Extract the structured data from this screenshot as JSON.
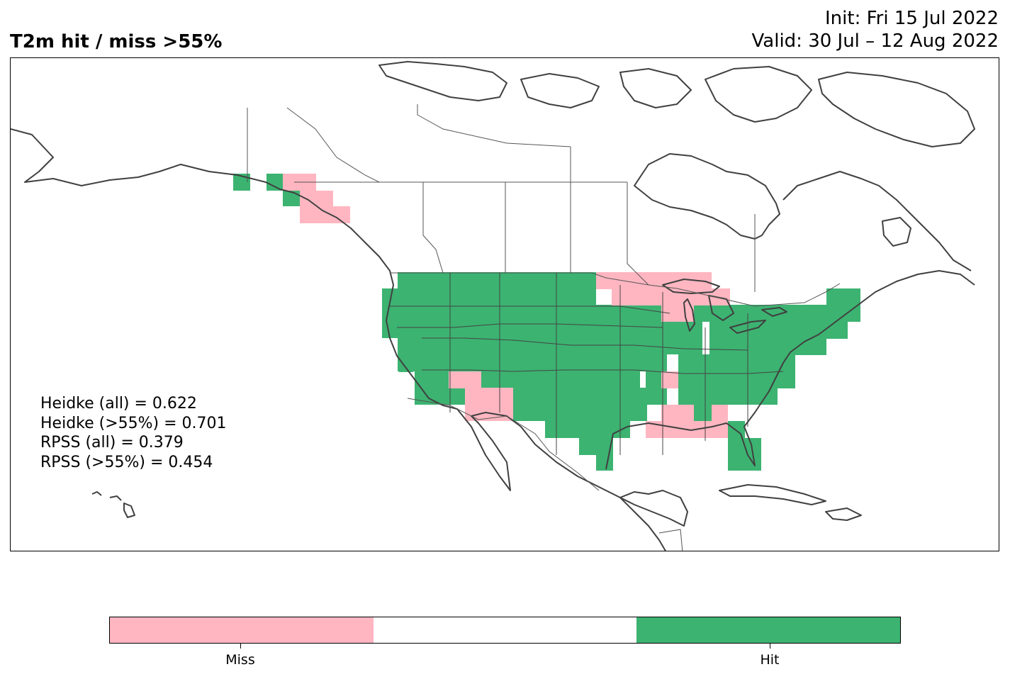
{
  "header": {
    "title": "T2m hit / miss  >55%",
    "init": "Init: Fri 15 Jul 2022",
    "valid": "Valid: 30 Jul – 12 Aug 2022"
  },
  "scores": [
    "Heidke (all) = 0.622",
    "Heidke (>55%) = 0.701",
    "RPSS (all) = 0.379",
    "RPSS (>55%) = 0.454"
  ],
  "colorbar": {
    "segments": [
      {
        "label": "Miss",
        "color": "#ffb6c1"
      },
      {
        "label": "",
        "color": "#ffffff"
      },
      {
        "label": "Hit",
        "color": "#3cb371"
      }
    ]
  },
  "colors": {
    "hit": "#3cb371",
    "miss": "#ffb6c1",
    "coast": "#404040",
    "border": "#555555"
  },
  "map": {
    "region": "North America",
    "categories": [
      "Miss",
      "Hit"
    ]
  }
}
